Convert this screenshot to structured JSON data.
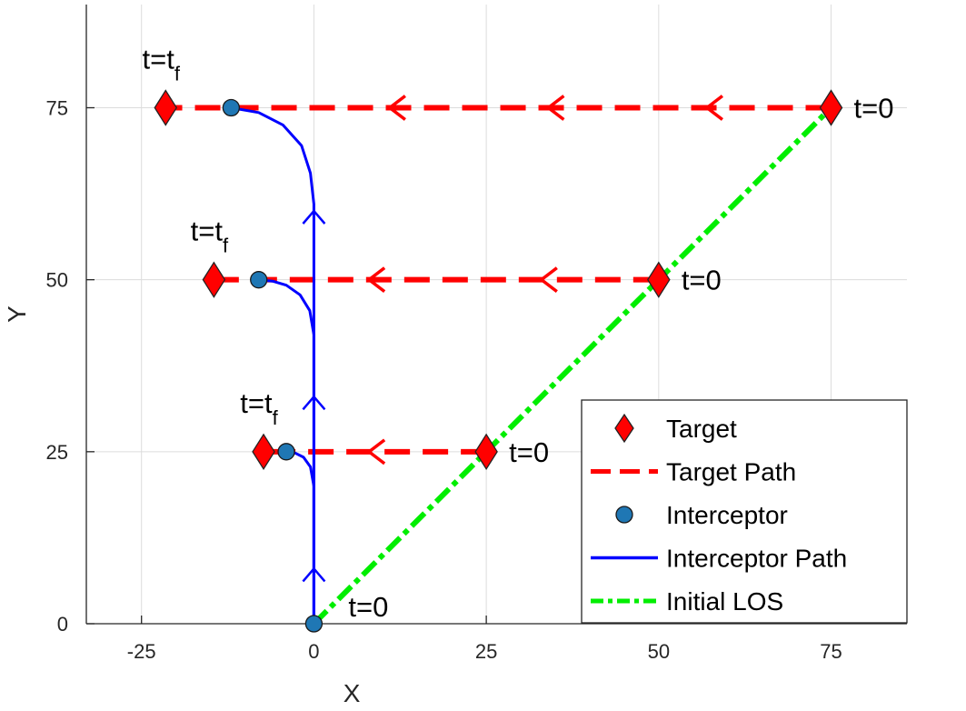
{
  "chart_data": {
    "type": "line",
    "xlabel": "X",
    "ylabel": "Y",
    "xlim": [
      -33,
      86
    ],
    "ylim": [
      0,
      90
    ],
    "xticks": [
      -25,
      0,
      25,
      50,
      75
    ],
    "yticks": [
      0,
      25,
      50,
      75
    ],
    "xtick_labels": [
      "-25",
      "0",
      "25",
      "50",
      "75"
    ],
    "ytick_labels": [
      "0",
      "25",
      "50",
      "75"
    ],
    "grid": true,
    "legend_position": "bottom-right",
    "colors": {
      "target": "#ff0000",
      "target_path": "#ff0000",
      "interceptor": "#1f77b4",
      "interceptor_path": "#0000ff",
      "initial_los": "#00ee00"
    },
    "legend": [
      {
        "key": "target",
        "label": "Target",
        "style": "diamond"
      },
      {
        "key": "target_path",
        "label": "Target Path",
        "style": "dashed"
      },
      {
        "key": "interceptor",
        "label": "Interceptor",
        "style": "circle"
      },
      {
        "key": "interceptor_path",
        "label": "Interceptor Path",
        "style": "solid"
      },
      {
        "key": "initial_los",
        "label": "Initial LOS",
        "style": "dashdot"
      }
    ],
    "scenarios": [
      {
        "target_start": [
          25,
          25
        ],
        "target_end": [
          -7.3,
          25
        ],
        "interceptor_end": [
          -4,
          25
        ],
        "interceptor_path": [
          [
            0,
            0
          ],
          [
            0,
            20
          ],
          [
            -0.5,
            22.8
          ],
          [
            -1.5,
            24.2
          ],
          [
            -2.7,
            24.8
          ],
          [
            -4,
            25
          ]
        ],
        "target_arrows_x": [
          8
        ],
        "start_label": "t=0",
        "end_label": "t=t",
        "end_label_sub": "f"
      },
      {
        "target_start": [
          50,
          50
        ],
        "target_end": [
          -14.5,
          50
        ],
        "interceptor_end": [
          -8,
          50
        ],
        "interceptor_path": [
          [
            0,
            0
          ],
          [
            0,
            42
          ],
          [
            -0.6,
            45.5
          ],
          [
            -2,
            47.8
          ],
          [
            -4,
            49.2
          ],
          [
            -6,
            49.8
          ],
          [
            -8,
            50
          ]
        ],
        "target_arrows_x": [
          8,
          33
        ],
        "start_label": "t=0",
        "end_label": "t=t",
        "end_label_sub": "f"
      },
      {
        "target_start": [
          75,
          75
        ],
        "target_end": [
          -21.5,
          75
        ],
        "interceptor_end": [
          -12,
          75
        ],
        "interceptor_path": [
          [
            0,
            0
          ],
          [
            0,
            61
          ],
          [
            -0.5,
            65.5
          ],
          [
            -1.8,
            69.5
          ],
          [
            -4.5,
            72.5
          ],
          [
            -8,
            74.3
          ],
          [
            -12,
            75
          ]
        ],
        "target_arrows_x": [
          11,
          34,
          57
        ],
        "start_label": "t=0",
        "end_label": "t=t",
        "end_label_sub": "f"
      }
    ],
    "interceptor_start": [
      0,
      0
    ],
    "interceptor_start_label": "t=0",
    "interceptor_arrows_y": [
      8,
      33,
      60
    ],
    "initial_los": [
      [
        0,
        0
      ],
      [
        75,
        75
      ]
    ]
  }
}
